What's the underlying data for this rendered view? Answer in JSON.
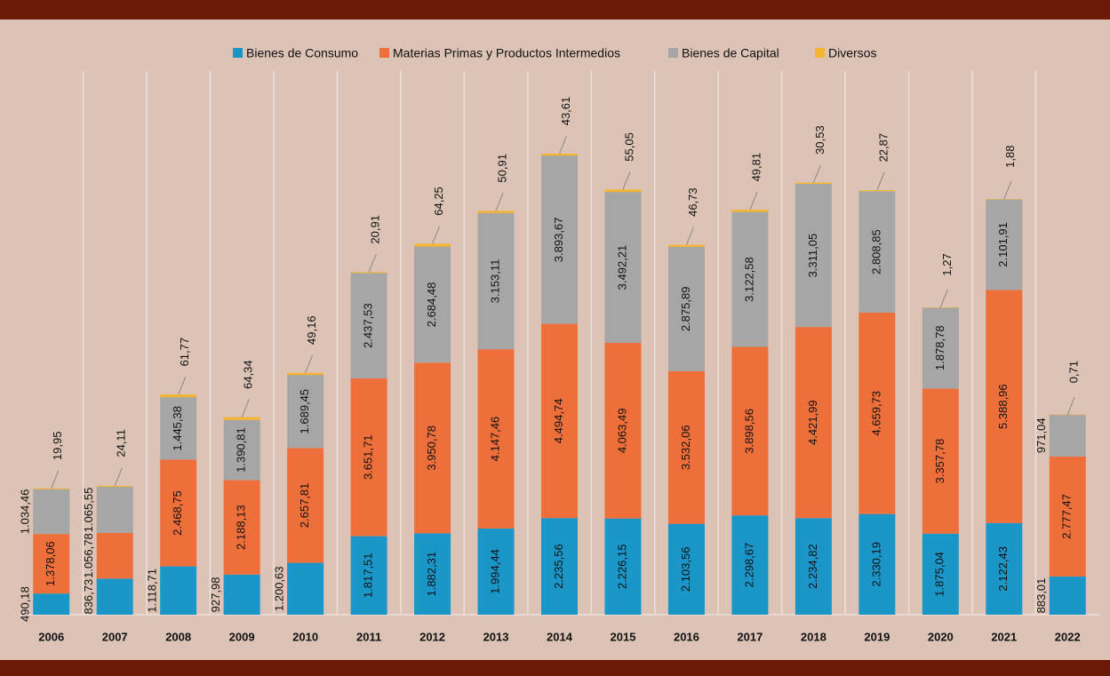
{
  "chart_data": {
    "type": "bar",
    "stacked": true,
    "categories": [
      "2006",
      "2007",
      "2008",
      "2009",
      "2010",
      "2011",
      "2012",
      "2013",
      "2014",
      "2015",
      "2016",
      "2017",
      "2018",
      "2019",
      "2020",
      "2021",
      "2022"
    ],
    "series": [
      {
        "name": "Bienes de Consumo",
        "color": "#1b96c9",
        "values": [
          490.18,
          836.73,
          1118.71,
          927.98,
          1200.63,
          1817.51,
          1882.31,
          1994.44,
          2235.56,
          2226.15,
          2103.56,
          2298.67,
          2234.82,
          2330.19,
          1875.04,
          2122.43,
          883.01
        ],
        "value_labels": [
          "490,18",
          "836,73",
          "1.118,71",
          "927,98",
          "1.200,63",
          "1.817,51",
          "1.882,31",
          "1.994,44",
          "2.235,56",
          "2.226,15",
          "2.103,56",
          "2.298,67",
          "2.234,82",
          "2.330,19",
          "1.875,04",
          "2.122,43",
          "883,01"
        ]
      },
      {
        "name": "Materias Primas y Productos Intermedios",
        "color": "#ef6f3a",
        "values": [
          1378.06,
          1056.78,
          2468.75,
          2188.13,
          2657.81,
          3651.71,
          3950.78,
          4147.46,
          4494.74,
          4063.49,
          3532.06,
          3898.56,
          4421.99,
          4659.73,
          3357.78,
          5388.96,
          2777.47
        ],
        "value_labels": [
          "1.378,06",
          "1.056,78",
          "2.468,75",
          "2.188,13",
          "2.657,81",
          "3.651,71",
          "3.950,78",
          "4.147,46",
          "4.494,74",
          "4.063,49",
          "3.532,06",
          "3.898,56",
          "4.421,99",
          "4.659,73",
          "3.357,78",
          "5.388,96",
          "2.777,47"
        ]
      },
      {
        "name": "Bienes de Capital",
        "color": "#a6a6a6",
        "values": [
          1034.46,
          1065.55,
          1445.38,
          1390.81,
          1689.45,
          2437.53,
          2684.48,
          3153.11,
          3893.67,
          3492.21,
          2875.89,
          3122.58,
          3311.05,
          2808.85,
          1878.78,
          2101.91,
          971.04
        ],
        "value_labels": [
          "1.034,46",
          "1.065,55",
          "1.445,38",
          "1.390,81",
          "1.689,45",
          "2.437,53",
          "2.684,48",
          "3.153,11",
          "3.893,67",
          "3.492,21",
          "2.875,89",
          "3.122,58",
          "3.311,05",
          "2.808,85",
          "1.878,78",
          "2.101,91",
          "971,04"
        ]
      },
      {
        "name": "Diversos",
        "color": "#f5b530",
        "values": [
          19.95,
          24.11,
          61.77,
          64.34,
          49.16,
          20.91,
          64.25,
          50.91,
          43.61,
          55.05,
          46.73,
          49.81,
          30.53,
          22.87,
          1.27,
          1.88,
          0.71
        ],
        "value_labels": [
          "19,95",
          "24,11",
          "61,77",
          "64,34",
          "49,16",
          "20,91",
          "64,25",
          "50,91",
          "43,61",
          "55,05",
          "46,73",
          "49,81",
          "30,53",
          "22,87",
          "1,27",
          "1,88",
          "0,71"
        ]
      }
    ],
    "legend": "top"
  }
}
